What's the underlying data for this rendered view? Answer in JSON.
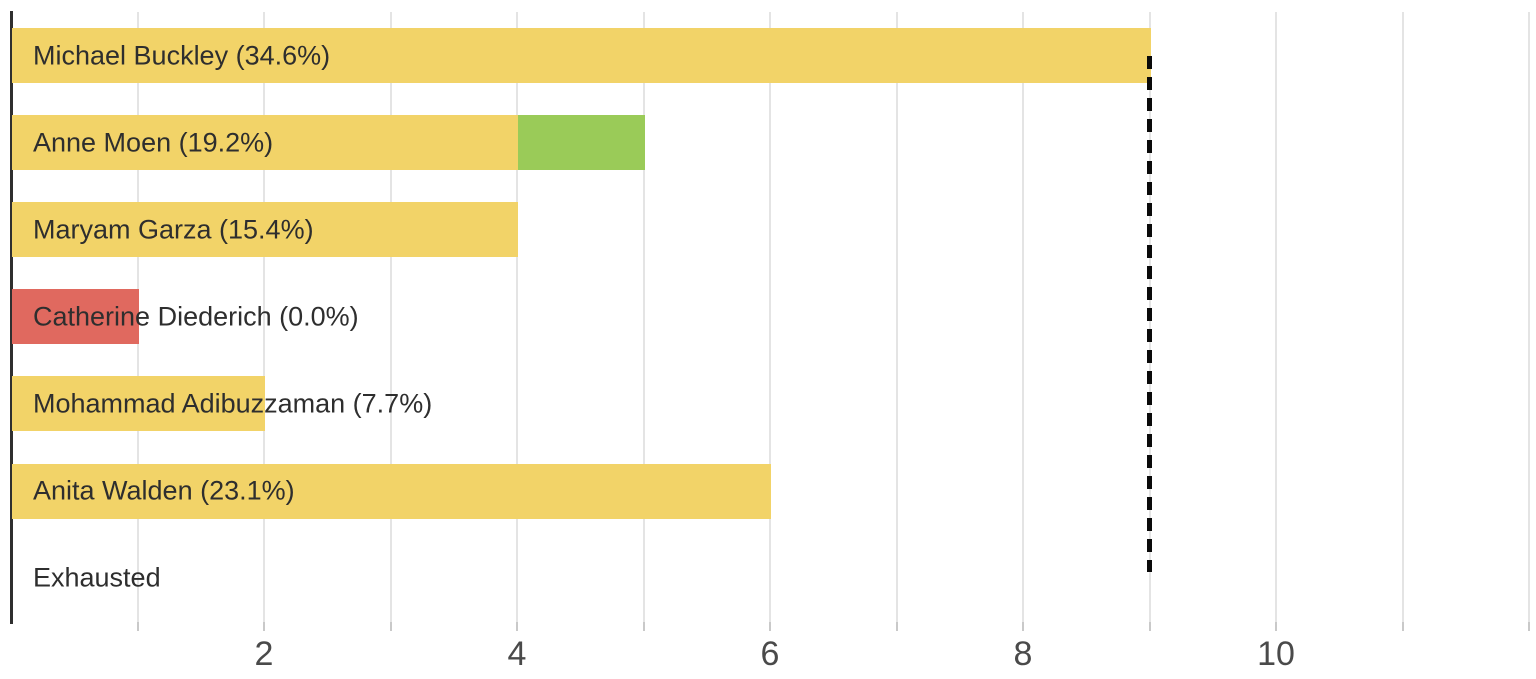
{
  "chart_data": {
    "type": "bar",
    "orientation": "horizontal",
    "title": "",
    "xlabel": "",
    "ylabel": "",
    "xlim": [
      0,
      12.05
    ],
    "gridline_interval": 1,
    "grid": true,
    "legend_position": "none",
    "x_ticks": [
      {
        "value": 2,
        "label": "2"
      },
      {
        "value": 4,
        "label": "4"
      },
      {
        "value": 6,
        "label": "6"
      },
      {
        "value": 8,
        "label": "8"
      },
      {
        "value": 10,
        "label": "10"
      }
    ],
    "threshold": {
      "value": 9,
      "style": "dashed",
      "color": "#0a0a0a"
    },
    "rows": [
      {
        "label": "Michael Buckley (34.6%)",
        "segments": [
          {
            "role": "continuing",
            "value": 9,
            "color": "#F2D368"
          }
        ]
      },
      {
        "label": "Anne Moen (19.2%)",
        "segments": [
          {
            "role": "continuing",
            "value": 4,
            "color": "#F2D368"
          },
          {
            "role": "transfer",
            "value": 1,
            "color": "#9ACB58"
          }
        ]
      },
      {
        "label": "Maryam Garza (15.4%)",
        "segments": [
          {
            "role": "continuing",
            "value": 4,
            "color": "#F2D368"
          }
        ]
      },
      {
        "label": "Catherine Diederich (0.0%)",
        "segments": [
          {
            "role": "eliminated",
            "value": 1,
            "color": "#E0695F"
          }
        ]
      },
      {
        "label": "Mohammad Adibuzzaman (7.7%)",
        "segments": [
          {
            "role": "continuing",
            "value": 2,
            "color": "#F2D368"
          }
        ]
      },
      {
        "label": "Anita Walden (23.1%)",
        "segments": [
          {
            "role": "continuing",
            "value": 6,
            "color": "#F2D368"
          }
        ]
      },
      {
        "label": "Exhausted",
        "segments": []
      }
    ],
    "colors": {
      "bar_yellow": "#F2D368",
      "bar_green": "#9ACB58",
      "bar_red": "#E0695F",
      "gridline": "#E4E4E4",
      "tick_mark": "#C9C9C9",
      "axis_line": "#2F2F2F",
      "bar_label_text": "#2E2E2E",
      "tick_label_text": "#4A4A4A",
      "background": "#FFFFFF"
    }
  }
}
